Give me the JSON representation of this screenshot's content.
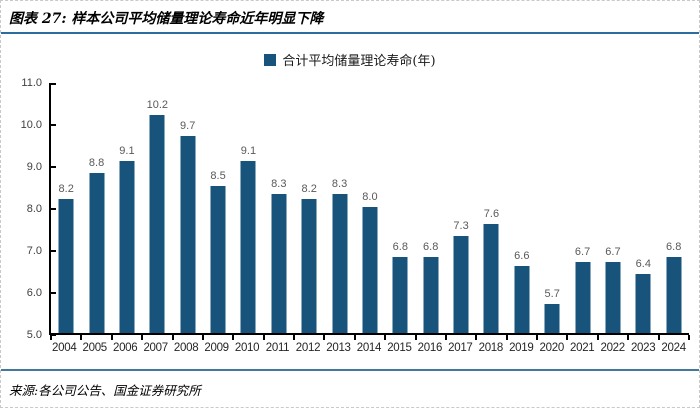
{
  "figure": {
    "title": "图表 27: 样本公司平均储量理论寿命近年明显下降",
    "source": "来源:各公司公告、国金证券研究所"
  },
  "chart_data": {
    "type": "bar",
    "title": "样本公司平均储量理论寿命近年明显下降",
    "legend": "合计平均储量理论寿命(年)",
    "legend_position": "top-center",
    "categories": [
      "2004",
      "2005",
      "2006",
      "2007",
      "2008",
      "2009",
      "2010",
      "2011",
      "2012",
      "2013",
      "2014",
      "2015",
      "2016",
      "2017",
      "2018",
      "2019",
      "2020",
      "2021",
      "2022",
      "2023",
      "2024"
    ],
    "values": [
      8.2,
      8.8,
      9.1,
      10.2,
      9.7,
      8.5,
      9.1,
      8.3,
      8.2,
      8.3,
      8.0,
      6.8,
      6.8,
      7.3,
      7.6,
      6.6,
      5.7,
      6.7,
      6.7,
      6.4,
      6.8
    ],
    "value_labels": [
      "8.2",
      "8.8",
      "9.1",
      "10.2",
      "9.7",
      "8.5",
      "9.1",
      "8.3",
      "8.2",
      "8.3",
      "8.0",
      "6.8",
      "6.8",
      "7.3",
      "7.6",
      "6.6",
      "5.7",
      "6.7",
      "6.7",
      "6.4",
      "6.8"
    ],
    "xlabel": "",
    "ylabel": "",
    "ylim": [
      5.0,
      11.0
    ],
    "ytick_labels": [
      "5.0",
      "6.0",
      "7.0",
      "8.0",
      "9.0",
      "10.0",
      "11.0"
    ],
    "grid": false,
    "colors": {
      "bar": "#17537A",
      "value_label": "#595959",
      "axis": "#000000",
      "y_tick_label": "#404040",
      "x_tick_label": "#262626",
      "title_rule": "#2A6D9E",
      "footer_rule": "#44789B",
      "frame_border": "#C9C9C9"
    }
  }
}
